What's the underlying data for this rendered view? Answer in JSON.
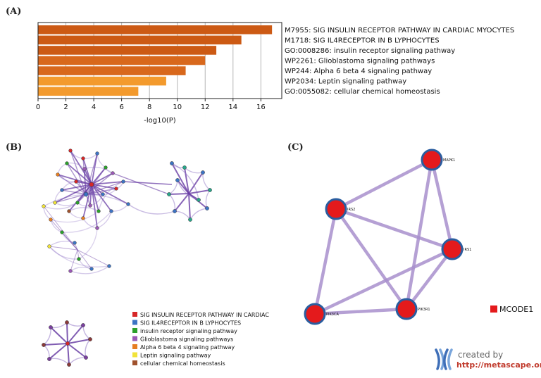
{
  "panels": {
    "a": "(A)",
    "b": "(B)",
    "c": "(C)"
  },
  "chart_data": {
    "type": "bar",
    "orientation": "horizontal",
    "categories": [
      "M7955: SIG INSULIN RECEPTOR PATHWAY IN CARDIAC MYOCYTES",
      "M1718: SIG IL4RECEPTOR IN B LYPHOCYTES",
      "GO:0008286: insulin receptor signaling pathway",
      "WP2261: Glioblastoma signaling pathways",
      "WP244: Alpha 6 beta 4 signaling pathway",
      "WP2034: Leptin signaling pathway",
      "GO:0055082: cellular chemical homeostasis"
    ],
    "values": [
      16.8,
      14.6,
      12.8,
      12.0,
      10.6,
      9.2,
      7.2
    ],
    "colors": [
      "#cc5a14",
      "#cc5a14",
      "#cc5a14",
      "#d8681c",
      "#d8681c",
      "#f39a2d",
      "#f39a2d"
    ],
    "xlabel": "-log10(P)",
    "ylabel": "",
    "xlim": [
      0,
      17.5
    ],
    "xticks": [
      0,
      2,
      4,
      6,
      8,
      10,
      12,
      14,
      16
    ],
    "grid": true
  },
  "network_legend": [
    {
      "label": "SIG INSULIN RECEPTOR PATHWAY IN CARDIAC",
      "color": "#d62728"
    },
    {
      "label": "SIG IL4RECEPTOR IN B LYPHOCYTES",
      "color": "#3d74c4"
    },
    {
      "label": "insulin receptor signaling pathway",
      "color": "#2ca02c"
    },
    {
      "label": "Glioblastoma signaling pathways",
      "color": "#9b59b6"
    },
    {
      "label": "Alpha 6 beta 4 signaling pathway",
      "color": "#e67e22"
    },
    {
      "label": "Leptin signaling pathway",
      "color": "#f1e33a"
    },
    {
      "label": "cellular chemical homeostasis",
      "color": "#a0522d"
    }
  ],
  "ppi": {
    "nodes": [
      "MAPK1",
      "IRS2",
      "IRS1",
      "PIK3CA",
      "PIK3R1"
    ],
    "node_color": "#e41a1c",
    "edge_color": "#a88fcc",
    "edges": [
      [
        "MAPK1",
        "IRS2"
      ],
      [
        "MAPK1",
        "IRS1"
      ],
      [
        "MAPK1",
        "PIK3R1"
      ],
      [
        "IRS2",
        "IRS1"
      ],
      [
        "IRS2",
        "PIK3CA"
      ],
      [
        "IRS2",
        "PIK3R1"
      ],
      [
        "IRS1",
        "PIK3CA"
      ],
      [
        "IRS1",
        "PIK3R1"
      ],
      [
        "PIK3CA",
        "PIK3R1"
      ]
    ],
    "legend_label": "MCODE1"
  },
  "branding": {
    "created_by": "created by",
    "url": "http://metascape.org"
  }
}
